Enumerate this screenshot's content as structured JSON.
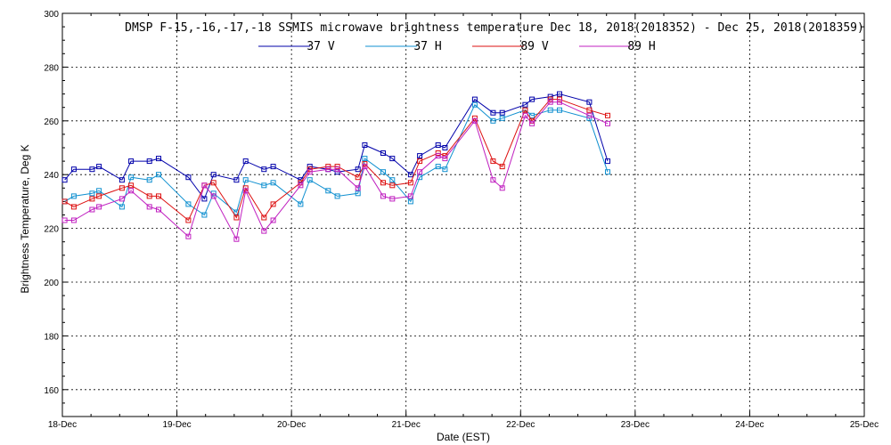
{
  "chart_data": {
    "type": "line",
    "title": "DMSP F-15,-16,-17,-18 SSMIS microwave brightness temperature Dec 18, 2018(2018352) - Dec 25, 2018(2018359)",
    "xlabel": "Date (EST)",
    "ylabel": "Brightness Temperature, Deg K",
    "xlim": [
      0,
      7
    ],
    "ylim": [
      150,
      300
    ],
    "x_tick_values": [
      0,
      1,
      2,
      3,
      4,
      5,
      6,
      7
    ],
    "x_tick_labels": [
      "18-Dec",
      "19-Dec",
      "20-Dec",
      "21-Dec",
      "22-Dec",
      "23-Dec",
      "24-Dec",
      "25-Dec"
    ],
    "y_tick_values": [
      160,
      180,
      200,
      220,
      240,
      260,
      280,
      300
    ],
    "grid": true,
    "legend_position": "top",
    "x_unit_note": "x values are in days relative to 18-Dec 00:00",
    "series": [
      {
        "name": "37 V",
        "color": "#0000aa",
        "points": [
          [
            0.02,
            238
          ],
          [
            0.1,
            242
          ],
          [
            0.26,
            242
          ],
          [
            0.32,
            243
          ],
          [
            0.52,
            238
          ],
          [
            0.6,
            245
          ],
          [
            0.76,
            245
          ],
          [
            0.84,
            246
          ],
          [
            1.1,
            239
          ],
          [
            1.24,
            231
          ],
          [
            1.32,
            240
          ],
          [
            1.52,
            238
          ],
          [
            1.6,
            245
          ],
          [
            1.76,
            242
          ],
          [
            1.84,
            243
          ],
          [
            2.08,
            238
          ],
          [
            2.16,
            243
          ],
          [
            2.32,
            242
          ],
          [
            2.4,
            241
          ],
          [
            2.58,
            242
          ],
          [
            2.64,
            251
          ],
          [
            2.8,
            248
          ],
          [
            2.88,
            246
          ],
          [
            3.04,
            240
          ],
          [
            3.12,
            247
          ],
          [
            3.28,
            251
          ],
          [
            3.34,
            250
          ],
          [
            3.6,
            268
          ],
          [
            3.76,
            263
          ],
          [
            3.84,
            263
          ],
          [
            4.04,
            266
          ],
          [
            4.1,
            268
          ],
          [
            4.26,
            269
          ],
          [
            4.34,
            270
          ],
          [
            4.6,
            267
          ],
          [
            4.76,
            245
          ]
        ]
      },
      {
        "name": "37 H",
        "color": "#1090d0",
        "points": [
          [
            0.02,
            230
          ],
          [
            0.1,
            232
          ],
          [
            0.26,
            233
          ],
          [
            0.32,
            234
          ],
          [
            0.52,
            228
          ],
          [
            0.6,
            239
          ],
          [
            0.76,
            238
          ],
          [
            0.84,
            240
          ],
          [
            1.1,
            229
          ],
          [
            1.24,
            225
          ],
          [
            1.32,
            233
          ],
          [
            1.52,
            226
          ],
          [
            1.6,
            238
          ],
          [
            1.76,
            236
          ],
          [
            1.84,
            237
          ],
          [
            2.08,
            229
          ],
          [
            2.16,
            238
          ],
          [
            2.32,
            234
          ],
          [
            2.4,
            232
          ],
          [
            2.58,
            233
          ],
          [
            2.64,
            246
          ],
          [
            2.8,
            241
          ],
          [
            2.88,
            238
          ],
          [
            3.04,
            230
          ],
          [
            3.12,
            239
          ],
          [
            3.28,
            243
          ],
          [
            3.34,
            242
          ],
          [
            3.6,
            266
          ],
          [
            3.76,
            260
          ],
          [
            3.84,
            261
          ],
          [
            4.04,
            264
          ],
          [
            4.1,
            262
          ],
          [
            4.26,
            264
          ],
          [
            4.34,
            264
          ],
          [
            4.6,
            261
          ],
          [
            4.76,
            241
          ]
        ]
      },
      {
        "name": "89 V",
        "color": "#dd1010",
        "points": [
          [
            0.02,
            230
          ],
          [
            0.1,
            228
          ],
          [
            0.26,
            231
          ],
          [
            0.32,
            232
          ],
          [
            0.52,
            235
          ],
          [
            0.6,
            236
          ],
          [
            0.76,
            232
          ],
          [
            0.84,
            232
          ],
          [
            1.1,
            223
          ],
          [
            1.24,
            236
          ],
          [
            1.32,
            237
          ],
          [
            1.52,
            224
          ],
          [
            1.6,
            235
          ],
          [
            1.76,
            224
          ],
          [
            1.84,
            229
          ],
          [
            2.08,
            237
          ],
          [
            2.16,
            242
          ],
          [
            2.32,
            243
          ],
          [
            2.4,
            243
          ],
          [
            2.58,
            239
          ],
          [
            2.64,
            244
          ],
          [
            2.8,
            237
          ],
          [
            2.88,
            236
          ],
          [
            3.04,
            237
          ],
          [
            3.12,
            245
          ],
          [
            3.28,
            248
          ],
          [
            3.34,
            247
          ],
          [
            3.6,
            261
          ],
          [
            3.76,
            245
          ],
          [
            3.84,
            243
          ],
          [
            4.04,
            264
          ],
          [
            4.1,
            260
          ],
          [
            4.26,
            268
          ],
          [
            4.34,
            268
          ],
          [
            4.6,
            264
          ],
          [
            4.76,
            262
          ]
        ]
      },
      {
        "name": "89 H",
        "color": "#c020c0",
        "points": [
          [
            0.02,
            223
          ],
          [
            0.1,
            223
          ],
          [
            0.26,
            227
          ],
          [
            0.32,
            228
          ],
          [
            0.52,
            231
          ],
          [
            0.6,
            234
          ],
          [
            0.76,
            228
          ],
          [
            0.84,
            227
          ],
          [
            1.1,
            217
          ],
          [
            1.24,
            236
          ],
          [
            1.32,
            232
          ],
          [
            1.52,
            216
          ],
          [
            1.6,
            234
          ],
          [
            1.76,
            219
          ],
          [
            1.84,
            223
          ],
          [
            2.08,
            236
          ],
          [
            2.16,
            241
          ],
          [
            2.32,
            242
          ],
          [
            2.4,
            242
          ],
          [
            2.58,
            235
          ],
          [
            2.64,
            243
          ],
          [
            2.8,
            232
          ],
          [
            2.88,
            231
          ],
          [
            3.04,
            232
          ],
          [
            3.12,
            241
          ],
          [
            3.28,
            247
          ],
          [
            3.34,
            246
          ],
          [
            3.6,
            260
          ],
          [
            3.76,
            238
          ],
          [
            3.84,
            235
          ],
          [
            4.04,
            262
          ],
          [
            4.1,
            259
          ],
          [
            4.26,
            267
          ],
          [
            4.34,
            267
          ],
          [
            4.6,
            262
          ],
          [
            4.76,
            259
          ]
        ]
      }
    ]
  }
}
